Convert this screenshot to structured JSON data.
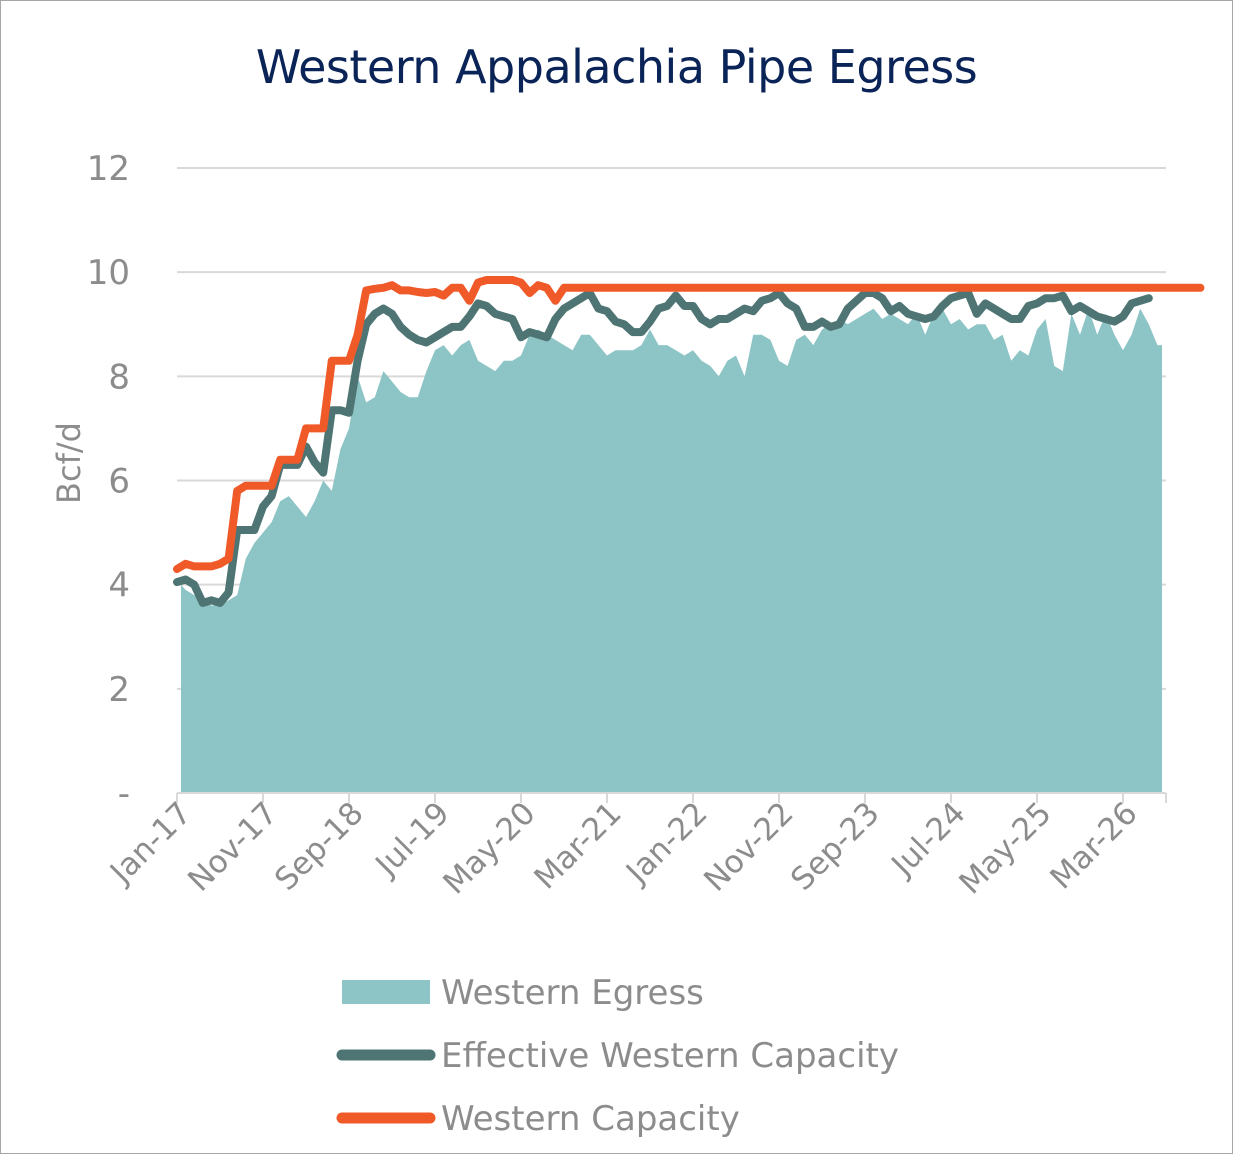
{
  "chart_data": {
    "type": "line",
    "title": "Western Appalachia Pipe Egress",
    "xlabel": "",
    "ylabel": "Bcf/d",
    "ylim": [
      0,
      12
    ],
    "yticks": [
      0,
      2,
      4,
      6,
      8,
      10,
      12
    ],
    "ytick_labels": [
      "-",
      "2",
      "4",
      "6",
      "8",
      "10",
      "12"
    ],
    "xtick_labels": [
      "Jan-17",
      "Nov-17",
      "Sep-18",
      "Jul-19",
      "May-20",
      "Mar-21",
      "Jan-22",
      "Nov-22",
      "Sep-23",
      "Jul-24",
      "May-25",
      "Mar-26"
    ],
    "x_start": "Jan-17",
    "x_end": "Dec-26",
    "x_interval": "monthly",
    "grid": "horizontal",
    "legend_position": "bottom",
    "series": [
      {
        "name": "Western Egress",
        "kind": "area",
        "color": "#8dc4c6",
        "values": [
          4.0,
          3.9,
          3.8,
          3.7,
          3.6,
          3.6,
          3.7,
          3.8,
          4.5,
          4.8,
          5.0,
          5.2,
          5.6,
          5.7,
          5.5,
          5.3,
          5.6,
          6.0,
          5.8,
          6.6,
          7.0,
          8.0,
          7.5,
          7.6,
          8.1,
          7.9,
          7.7,
          7.6,
          7.6,
          8.1,
          8.5,
          8.6,
          8.4,
          8.6,
          8.7,
          8.3,
          8.2,
          8.1,
          8.3,
          8.3,
          8.4,
          8.8,
          8.9,
          8.8,
          8.7,
          8.6,
          8.5,
          8.8,
          8.8,
          8.6,
          8.4,
          8.5,
          8.5,
          8.5,
          8.6,
          8.9,
          8.6,
          8.6,
          8.5,
          8.4,
          8.5,
          8.3,
          8.2,
          8.0,
          8.3,
          8.4,
          8.0,
          8.8,
          8.8,
          8.7,
          8.3,
          8.2,
          8.7,
          8.8,
          8.6,
          8.9,
          9.0,
          9.1,
          9.0,
          9.1,
          9.2,
          9.3,
          9.1,
          9.2,
          9.1,
          9.0,
          9.2,
          8.8,
          9.2,
          9.3,
          9.0,
          9.1,
          8.9,
          9.0,
          9.0,
          8.7,
          8.8,
          8.3,
          8.5,
          8.4,
          8.9,
          9.1,
          8.2,
          8.1,
          9.2,
          8.8,
          9.3,
          8.8,
          9.2,
          8.8,
          8.5,
          8.8,
          9.3,
          9.0,
          8.6,
          8.6
        ]
      },
      {
        "name": "Effective Western Capacity",
        "kind": "line",
        "color": "#4f7474",
        "values": [
          4.05,
          4.1,
          4.0,
          3.65,
          3.7,
          3.65,
          3.85,
          5.05,
          5.05,
          5.05,
          5.5,
          5.7,
          6.3,
          6.3,
          6.3,
          6.65,
          6.35,
          6.15,
          7.35,
          7.35,
          7.3,
          8.3,
          9.0,
          9.2,
          9.3,
          9.2,
          8.95,
          8.8,
          8.7,
          8.65,
          8.75,
          8.85,
          8.95,
          8.95,
          9.15,
          9.4,
          9.35,
          9.2,
          9.15,
          9.1,
          8.75,
          8.85,
          8.8,
          8.75,
          9.1,
          9.3,
          9.4,
          9.5,
          9.6,
          9.3,
          9.25,
          9.05,
          9.0,
          8.85,
          8.85,
          9.05,
          9.3,
          9.35,
          9.55,
          9.35,
          9.35,
          9.1,
          9.0,
          9.1,
          9.1,
          9.2,
          9.3,
          9.25,
          9.45,
          9.5,
          9.6,
          9.4,
          9.3,
          8.95,
          8.95,
          9.05,
          8.95,
          9.0,
          9.3,
          9.45,
          9.6,
          9.6,
          9.5,
          9.25,
          9.35,
          9.2,
          9.15,
          9.1,
          9.15,
          9.35,
          9.5,
          9.55,
          9.6,
          9.2,
          9.4,
          9.3,
          9.2,
          9.1,
          9.1,
          9.35,
          9.4,
          9.5,
          9.5,
          9.55,
          9.25,
          9.35,
          9.25,
          9.15,
          9.1,
          9.05,
          9.15,
          9.4,
          9.45,
          9.5
        ]
      },
      {
        "name": "Western Capacity",
        "kind": "line",
        "color": "#f05a28",
        "values": [
          4.3,
          4.4,
          4.35,
          4.35,
          4.35,
          4.4,
          4.5,
          5.8,
          5.9,
          5.9,
          5.9,
          5.9,
          6.4,
          6.4,
          6.4,
          7.0,
          7.0,
          7.0,
          8.3,
          8.3,
          8.3,
          8.8,
          9.65,
          9.68,
          9.7,
          9.75,
          9.65,
          9.65,
          9.62,
          9.6,
          9.62,
          9.55,
          9.7,
          9.7,
          9.45,
          9.8,
          9.85,
          9.85,
          9.85,
          9.85,
          9.8,
          9.6,
          9.75,
          9.7,
          9.45,
          9.7,
          9.7,
          9.7,
          9.7,
          9.7,
          9.7,
          9.7,
          9.7,
          9.7,
          9.7,
          9.7,
          9.7,
          9.7,
          9.7,
          9.7,
          9.7,
          9.7,
          9.7,
          9.7,
          9.7,
          9.7,
          9.7,
          9.7,
          9.7,
          9.7,
          9.7,
          9.7,
          9.7,
          9.7,
          9.7,
          9.7,
          9.7,
          9.7,
          9.7,
          9.7,
          9.7,
          9.7,
          9.7,
          9.7,
          9.7,
          9.7,
          9.7,
          9.7,
          9.7,
          9.7,
          9.7,
          9.7,
          9.7,
          9.7,
          9.7,
          9.7,
          9.7,
          9.7,
          9.7,
          9.7,
          9.7,
          9.7,
          9.7,
          9.7,
          9.7,
          9.7,
          9.7,
          9.7,
          9.7,
          9.7,
          9.7,
          9.7,
          9.7,
          9.7,
          9.7,
          9.7,
          9.7,
          9.7,
          9.7,
          9.7
        ]
      }
    ]
  }
}
